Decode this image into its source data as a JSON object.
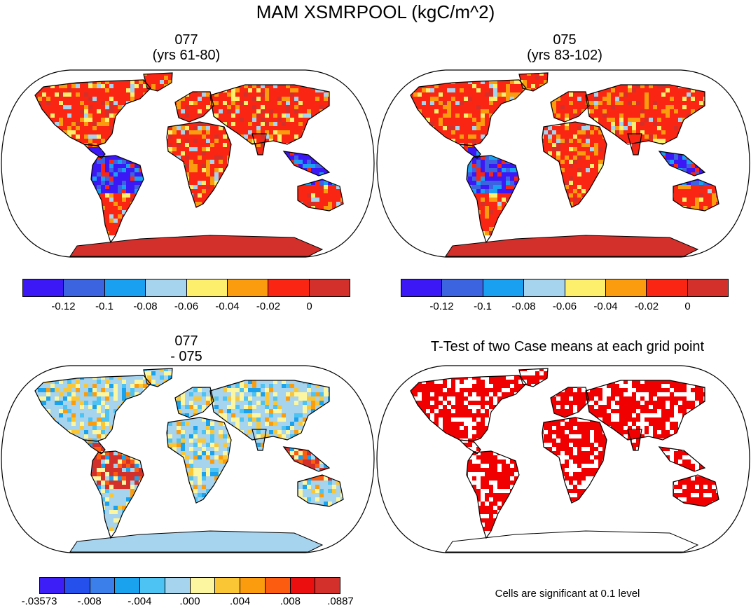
{
  "title": "MAM XSMRPOOL (kgC/m^2)",
  "panels": {
    "top_left": {
      "line1": "077",
      "line2": "(yrs 61-80)"
    },
    "top_right": {
      "line1": "075",
      "line2": "(yrs 83-102)"
    },
    "bottom_left": {
      "line1": "077",
      "line2": "- 075"
    },
    "bottom_right": {
      "line1": "T-Test of two Case means at each grid point"
    }
  },
  "colorbar_abs": {
    "colors": [
      "#3b18f5",
      "#3d64e0",
      "#1aa0f0",
      "#a6d3ee",
      "#fdee6b",
      "#fb9c0e",
      "#fa2512",
      "#d3302b"
    ],
    "labels": [
      "-0.12",
      "-0.1",
      "-0.08",
      "-0.06",
      "-0.04",
      "-0.02",
      "0"
    ]
  },
  "colorbar_diff": {
    "colors": [
      "#3d1ef7",
      "#2550ec",
      "#3b7fea",
      "#1aa2ef",
      "#4cc3f3",
      "#a6d3ee",
      "#fdf6a0",
      "#fbc636",
      "#fb9c0e",
      "#fb5c10",
      "#ec0f0f",
      "#d3302b"
    ],
    "labels": [
      "-.03573",
      "-.008",
      "-.004",
      ".000",
      ".004",
      ".008",
      ".0887"
    ]
  },
  "note": "Cells are significant at 0.1 level",
  "legend_colors": {
    "ocean": "#ffffff",
    "sig": "#f00000",
    "antarctica_abs": "#d3302b",
    "antarctica_diff": "#a6d3ee"
  }
}
